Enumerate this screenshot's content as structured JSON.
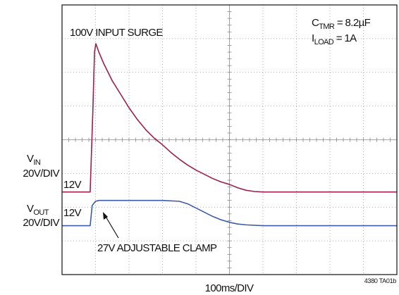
{
  "chart_data": {
    "type": "line",
    "xlim": [
      0,
      1000
    ],
    "series": [
      {
        "color": "#9c1f4f",
        "ylim": [
          -37,
          123
        ],
        "x": [
          0,
          80,
          84,
          92,
          97,
          101,
          110,
          125,
          150,
          175,
          200,
          225,
          250,
          275,
          300,
          325,
          350,
          375,
          400,
          425,
          450,
          475,
          500,
          525,
          550,
          575,
          600,
          700,
          800,
          900,
          1000
        ],
        "values": [
          12,
          12,
          12,
          60,
          95,
          100,
          95,
          88,
          78,
          70,
          62,
          55,
          49,
          44,
          40,
          35.5,
          31.5,
          28,
          25,
          22.5,
          20,
          18,
          16.5,
          14.5,
          13,
          12.3,
          12,
          12,
          12,
          12,
          12
        ]
      },
      {
        "color": "#3d5ba9",
        "ylim": [
          -17,
          143
        ],
        "x": [
          0,
          84,
          90,
          100,
          110,
          200,
          300,
          350,
          375,
          400,
          425,
          450,
          475,
          500,
          525,
          550,
          600,
          700,
          800,
          900,
          1000
        ],
        "values": [
          12,
          12,
          24,
          26.5,
          27,
          27,
          27,
          26.5,
          25,
          22.5,
          20,
          17.5,
          15.5,
          14,
          13,
          12.5,
          12,
          12,
          12,
          12,
          12
        ]
      }
    ],
    "annotations": {
      "surge": "100V INPUT SURGE",
      "c_tmr": [
        "C",
        "TMR",
        " = 8.2µF"
      ],
      "i_load": [
        "I",
        "LOAD",
        " = 1A"
      ],
      "vin": [
        "V",
        "IN"
      ],
      "vin_scale": "20V/DIV",
      "vin_level": "12V",
      "vout": [
        "V",
        "OUT"
      ],
      "vout_scale": "20V/DIV",
      "vout_level": "12V",
      "clamp": "27V ADJUSTABLE CLAMP",
      "time_scale": "100ms/DIV",
      "figure_id": "4380 TA01b"
    }
  }
}
